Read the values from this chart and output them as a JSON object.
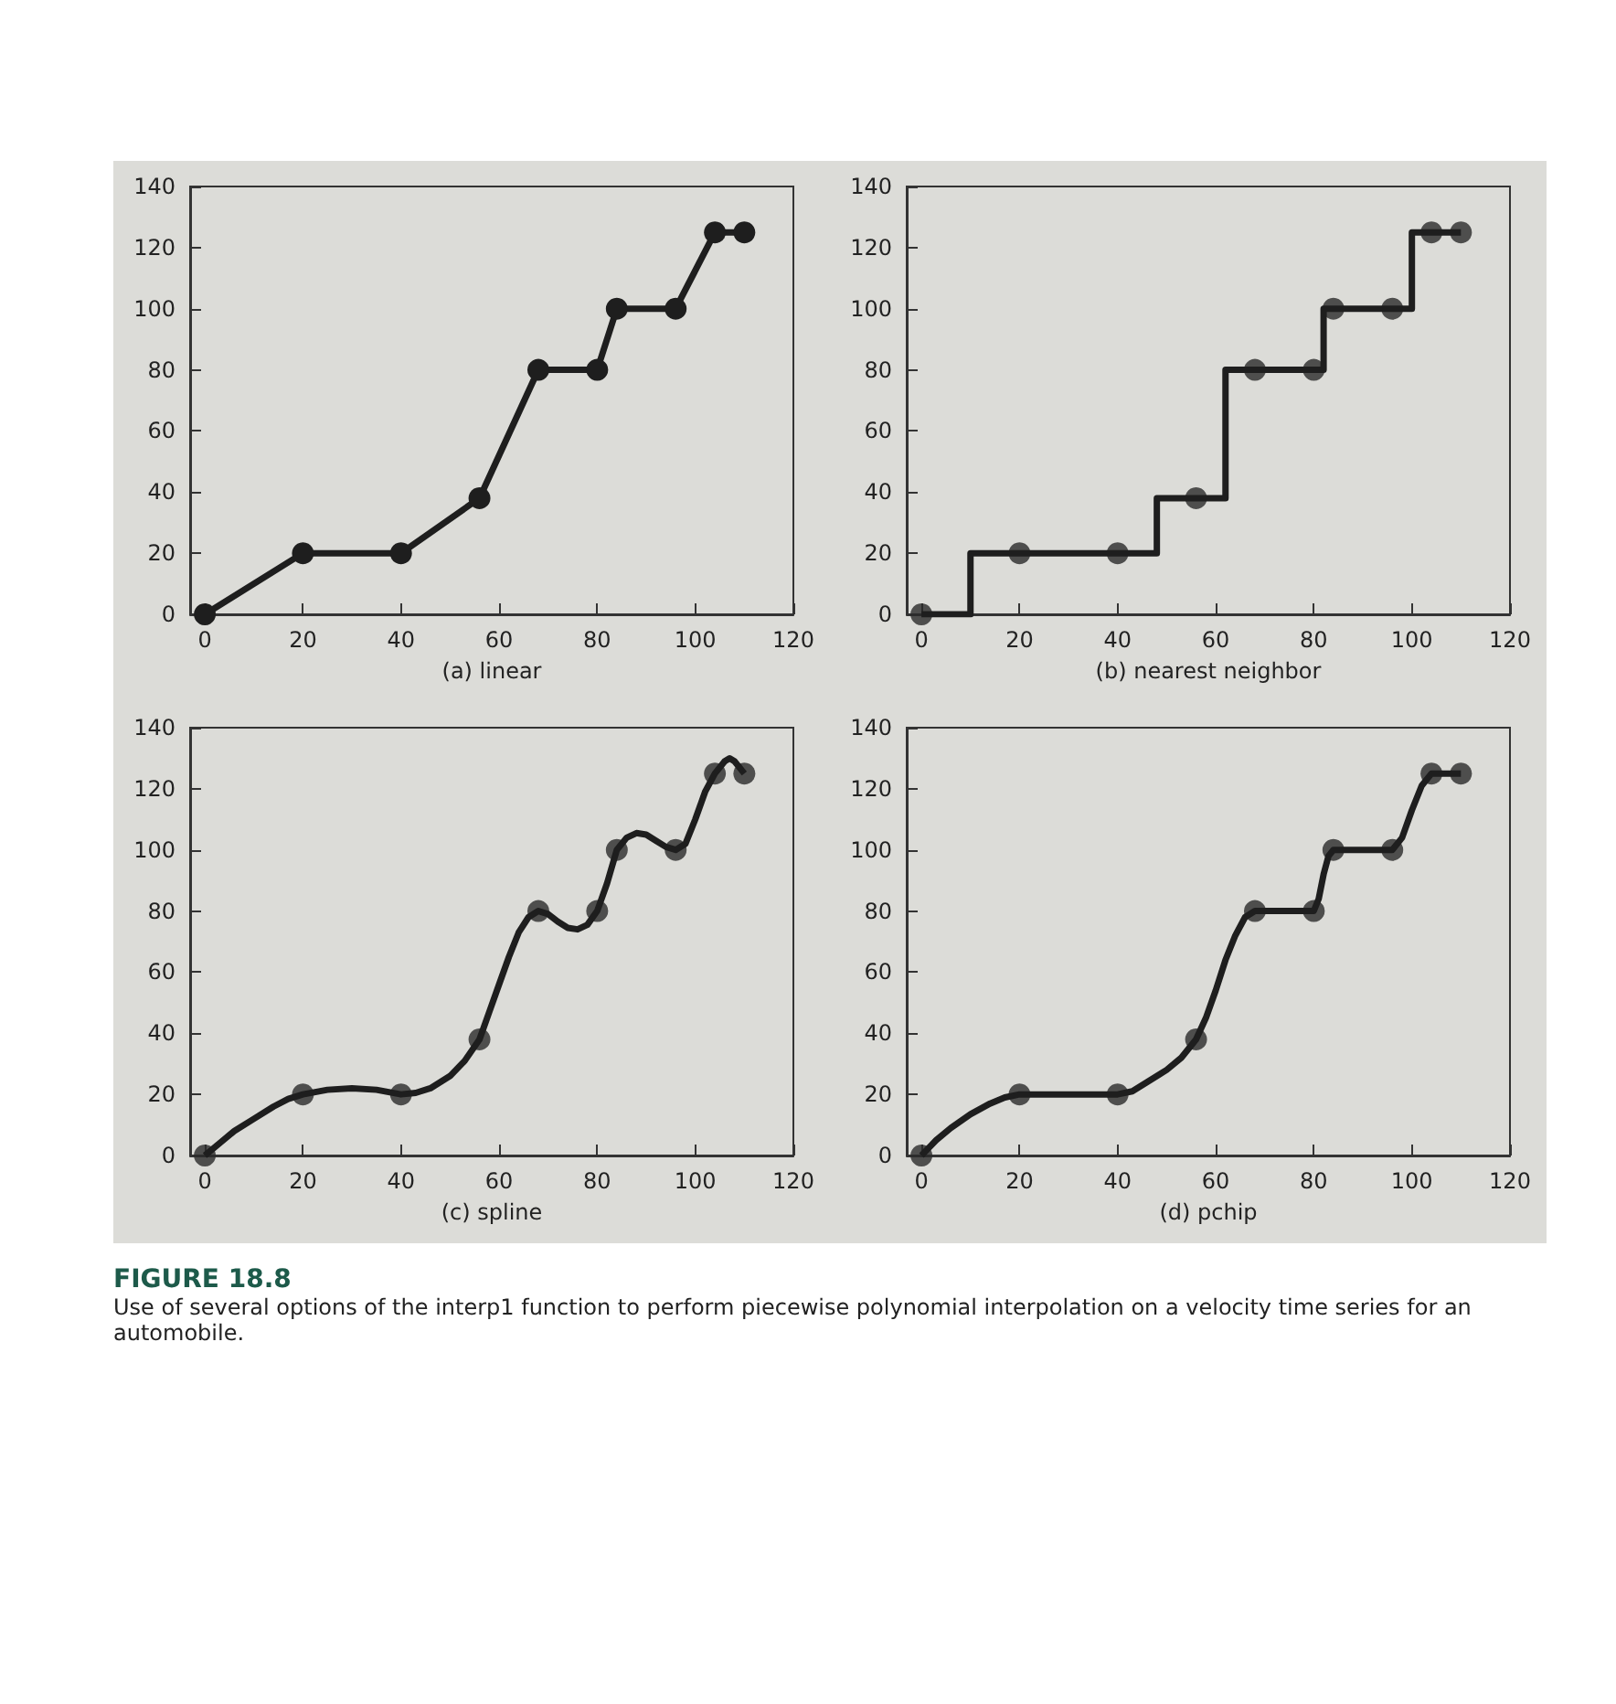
{
  "chart_data": [
    {
      "type": "line",
      "xlabel": "(a) linear",
      "x": [
        0,
        20,
        40,
        56,
        68,
        80,
        84,
        96,
        104,
        110
      ],
      "values": [
        0,
        20,
        20,
        38,
        80,
        80,
        100,
        100,
        125,
        125
      ],
      "color": "#1e1e1e",
      "marker": "circle",
      "xlim": [
        -3,
        120
      ],
      "xticks": [
        0,
        20,
        40,
        60,
        80,
        100,
        120
      ],
      "ylim": [
        0,
        140
      ],
      "yticks": [
        0,
        20,
        40,
        60,
        80,
        100,
        120,
        140
      ]
    },
    {
      "type": "step",
      "xlabel": "(b) nearest neighbor",
      "series": [
        {
          "type": "step",
          "color": "#1e1e1e",
          "x": [
            0,
            20,
            40,
            56,
            68,
            80,
            84,
            96,
            104,
            110
          ],
          "values": [
            0,
            20,
            20,
            38,
            80,
            80,
            100,
            100,
            125,
            125
          ]
        },
        {
          "type": "scatter",
          "color": "#2a2a2a",
          "x": [
            0,
            20,
            40,
            56,
            68,
            80,
            84,
            96,
            104,
            110
          ],
          "values": [
            0,
            20,
            20,
            38,
            80,
            80,
            100,
            100,
            125,
            125
          ]
        }
      ],
      "xlim": [
        -3,
        120
      ],
      "xticks": [
        0,
        20,
        40,
        60,
        80,
        100,
        120
      ],
      "ylim": [
        0,
        140
      ],
      "yticks": [
        0,
        20,
        40,
        60,
        80,
        100,
        120,
        140
      ]
    },
    {
      "type": "line",
      "xlabel": "(c) spline",
      "series": [
        {
          "type": "line",
          "color": "#1e1e1e",
          "x": [
            0,
            3,
            6,
            10,
            14,
            17,
            20,
            25,
            30,
            35,
            40,
            43,
            46,
            50,
            53,
            56,
            58,
            60,
            62,
            64,
            66,
            68,
            70,
            72,
            74,
            76,
            78,
            80,
            82,
            84,
            86,
            88,
            90,
            92,
            94,
            96,
            98,
            100,
            102,
            104,
            106,
            107,
            108,
            110
          ],
          "values": [
            0,
            4,
            8,
            12,
            16,
            18.5,
            20,
            21.5,
            22,
            21.5,
            20,
            20.5,
            22,
            26,
            31,
            38,
            47,
            56,
            65,
            73,
            78,
            80,
            79,
            76.5,
            74.5,
            74,
            75.5,
            80,
            89,
            100,
            104,
            105.5,
            105,
            103,
            101,
            100,
            102,
            110,
            119,
            125,
            129,
            130,
            129,
            125
          ]
        },
        {
          "type": "scatter",
          "color": "#2a2a2a",
          "x": [
            0,
            20,
            40,
            56,
            68,
            80,
            84,
            96,
            104,
            110
          ],
          "values": [
            0,
            20,
            20,
            38,
            80,
            80,
            100,
            100,
            125,
            125
          ]
        }
      ],
      "xlim": [
        -3,
        120
      ],
      "xticks": [
        0,
        20,
        40,
        60,
        80,
        100,
        120
      ],
      "ylim": [
        0,
        140
      ],
      "yticks": [
        0,
        20,
        40,
        60,
        80,
        100,
        120,
        140
      ]
    },
    {
      "type": "line",
      "xlabel": "(d) pchip",
      "series": [
        {
          "type": "line",
          "color": "#1e1e1e",
          "x": [
            0,
            3,
            6,
            10,
            14,
            17,
            20,
            30,
            40,
            43,
            46,
            50,
            53,
            56,
            58,
            60,
            62,
            64,
            66,
            68,
            74,
            80,
            81,
            82,
            83,
            84,
            90,
            96,
            98,
            100,
            102,
            104,
            110
          ],
          "values": [
            0,
            5,
            9,
            13.5,
            17,
            19,
            20,
            20,
            20,
            21,
            24,
            28,
            32,
            38,
            45,
            54,
            64,
            72,
            78,
            80,
            80,
            80,
            84,
            92,
            98,
            100,
            100,
            100,
            104,
            113,
            121,
            125,
            125
          ]
        },
        {
          "type": "scatter",
          "color": "#2a2a2a",
          "x": [
            0,
            20,
            40,
            56,
            68,
            80,
            84,
            96,
            104,
            110
          ],
          "values": [
            0,
            20,
            20,
            38,
            80,
            80,
            100,
            100,
            125,
            125
          ]
        }
      ],
      "xlim": [
        -3,
        120
      ],
      "xticks": [
        0,
        20,
        40,
        60,
        80,
        100,
        120
      ],
      "ylim": [
        0,
        140
      ],
      "yticks": [
        0,
        20,
        40,
        60,
        80,
        100,
        120,
        140
      ],
      "annotations": [
        "FIGURE 18.8",
        "Use of several options of the interp1 function to perform piecewise polynomial interpolation on a velocity time series for an automobile."
      ]
    }
  ]
}
